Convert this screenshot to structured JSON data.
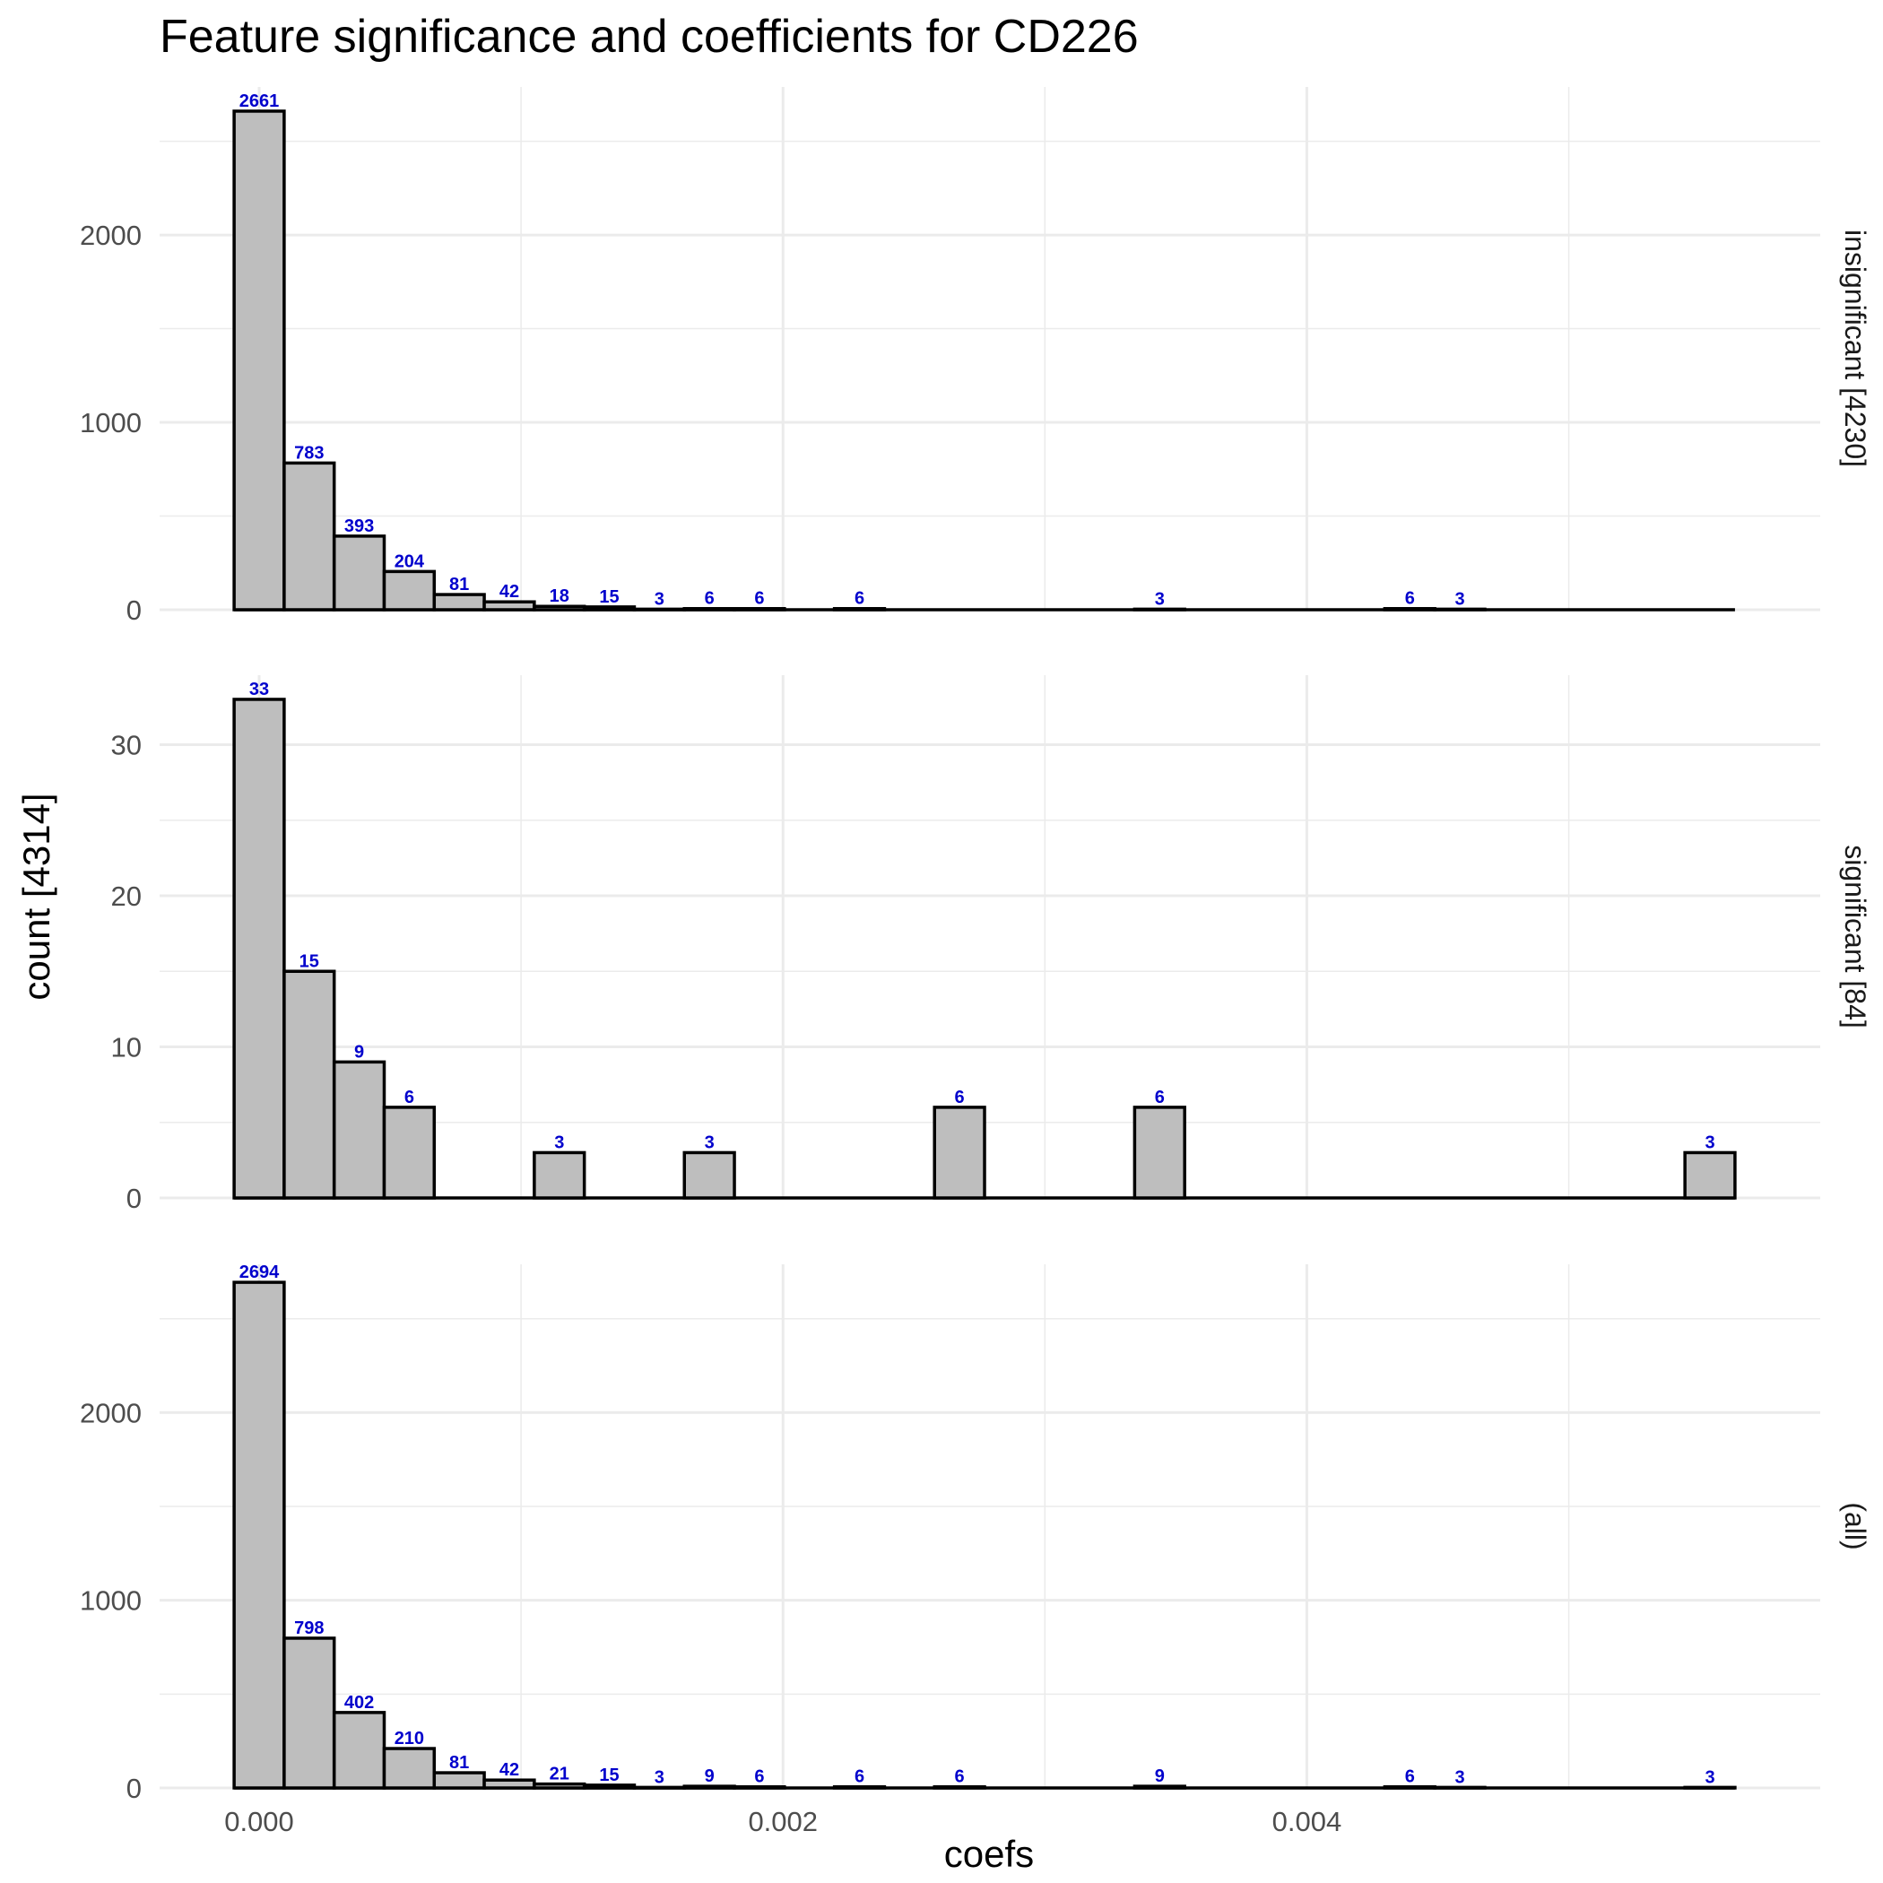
{
  "chart_data": {
    "type": "bar",
    "title": "Feature significance and coefficients for CD226",
    "xlabel": "coefs",
    "ylabel": "count [4314]",
    "bin_width": 0.000191,
    "x_ticks": [
      0.0,
      0.002,
      0.004
    ],
    "x_tick_labels": [
      "0.000",
      "0.002",
      "0.004"
    ],
    "xlim": [
      -0.00038,
      0.00596
    ],
    "grid": true,
    "panels": [
      {
        "name": "insignificant [4230]",
        "ylim": [
          0,
          2790
        ],
        "y_ticks": [
          0,
          1000,
          2000
        ],
        "y_tick_labels": [
          "0",
          "1000",
          "2000"
        ],
        "bins": [
          {
            "x": 0.0,
            "count": 2661
          },
          {
            "x": 0.000191,
            "count": 783
          },
          {
            "x": 0.000382,
            "count": 393
          },
          {
            "x": 0.000573,
            "count": 204
          },
          {
            "x": 0.000764,
            "count": 81
          },
          {
            "x": 0.000955,
            "count": 42
          },
          {
            "x": 0.001146,
            "count": 18
          },
          {
            "x": 0.001337,
            "count": 15
          },
          {
            "x": 0.001528,
            "count": 3
          },
          {
            "x": 0.001719,
            "count": 6
          },
          {
            "x": 0.00191,
            "count": 6
          },
          {
            "x": 0.002292,
            "count": 6
          },
          {
            "x": 0.003438,
            "count": 3
          },
          {
            "x": 0.004393,
            "count": 6
          },
          {
            "x": 0.004584,
            "count": 3
          }
        ]
      },
      {
        "name": "significant [84]",
        "ylim": [
          0,
          34.6
        ],
        "y_ticks": [
          0,
          10,
          20,
          30
        ],
        "y_tick_labels": [
          "0",
          "10",
          "20",
          "30"
        ],
        "bins": [
          {
            "x": 0.0,
            "count": 33
          },
          {
            "x": 0.000191,
            "count": 15
          },
          {
            "x": 0.000382,
            "count": 9
          },
          {
            "x": 0.000573,
            "count": 6
          },
          {
            "x": 0.001146,
            "count": 3
          },
          {
            "x": 0.001719,
            "count": 3
          },
          {
            "x": 0.002674,
            "count": 6
          },
          {
            "x": 0.003438,
            "count": 6
          },
          {
            "x": 0.005539,
            "count": 3
          }
        ]
      },
      {
        "name": "(all)",
        "ylim": [
          0,
          2790
        ],
        "y_ticks": [
          0,
          1000,
          2000
        ],
        "y_tick_labels": [
          "0",
          "1000",
          "2000"
        ],
        "bins": [
          {
            "x": 0.0,
            "count": 2694
          },
          {
            "x": 0.000191,
            "count": 798
          },
          {
            "x": 0.000382,
            "count": 402
          },
          {
            "x": 0.000573,
            "count": 210
          },
          {
            "x": 0.000764,
            "count": 81
          },
          {
            "x": 0.000955,
            "count": 42
          },
          {
            "x": 0.001146,
            "count": 21
          },
          {
            "x": 0.001337,
            "count": 15
          },
          {
            "x": 0.001528,
            "count": 3
          },
          {
            "x": 0.001719,
            "count": 9
          },
          {
            "x": 0.00191,
            "count": 6
          },
          {
            "x": 0.002292,
            "count": 6
          },
          {
            "x": 0.002674,
            "count": 6
          },
          {
            "x": 0.003438,
            "count": 9
          },
          {
            "x": 0.004393,
            "count": 6
          },
          {
            "x": 0.004584,
            "count": 3
          },
          {
            "x": 0.005539,
            "count": 3
          }
        ]
      }
    ],
    "colors": {
      "bar_fill": "#bebebe",
      "bar_outline": "#000000",
      "count_label": "#0000cc",
      "grid": "#ebebeb"
    }
  }
}
